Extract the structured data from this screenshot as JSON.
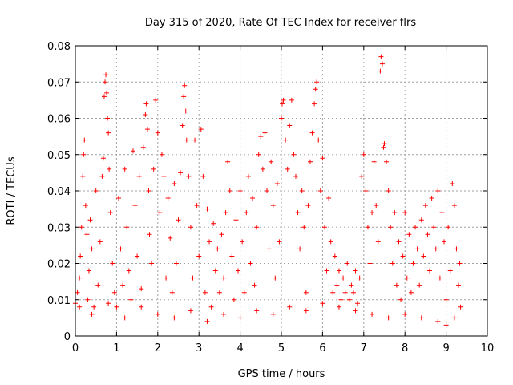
{
  "chart_data": {
    "type": "scatter",
    "title": "Day 315 of 2020, Rate Of TEC Index for receiver flrs",
    "xlabel": "GPS time / hours",
    "ylabel": "ROTI / TECUs",
    "xlim": [
      0,
      10
    ],
    "ylim": [
      0,
      0.08
    ],
    "x_ticks": [
      "0",
      "1",
      "2",
      "3",
      "4",
      "5",
      "6",
      "7",
      "8",
      "9",
      "10"
    ],
    "y_ticks": [
      "0",
      "0.01",
      "0.02",
      "0.03",
      "0.04",
      "0.05",
      "0.06",
      "0.07",
      "0.08"
    ],
    "grid": true,
    "marker": "plus",
    "color": "#ff0000",
    "series": [
      {
        "name": "ROTI",
        "points": [
          [
            0.0,
            0.009
          ],
          [
            0.05,
            0.012
          ],
          [
            0.1,
            0.016
          ],
          [
            0.12,
            0.022
          ],
          [
            0.15,
            0.03
          ],
          [
            0.18,
            0.044
          ],
          [
            0.2,
            0.05
          ],
          [
            0.22,
            0.054
          ],
          [
            0.25,
            0.036
          ],
          [
            0.28,
            0.028
          ],
          [
            0.3,
            0.01
          ],
          [
            0.33,
            0.018
          ],
          [
            0.36,
            0.032
          ],
          [
            0.4,
            0.024
          ],
          [
            0.45,
            0.008
          ],
          [
            0.5,
            0.04
          ],
          [
            0.55,
            0.014
          ],
          [
            0.6,
            0.026
          ],
          [
            0.65,
            0.044
          ],
          [
            0.68,
            0.049
          ],
          [
            0.7,
            0.066
          ],
          [
            0.72,
            0.07
          ],
          [
            0.74,
            0.072
          ],
          [
            0.76,
            0.067
          ],
          [
            0.78,
            0.06
          ],
          [
            0.8,
            0.056
          ],
          [
            0.82,
            0.046
          ],
          [
            0.85,
            0.034
          ],
          [
            0.9,
            0.02
          ],
          [
            0.95,
            0.012
          ],
          [
            1.0,
            0.008
          ],
          [
            1.05,
            0.038
          ],
          [
            1.1,
            0.024
          ],
          [
            1.15,
            0.014
          ],
          [
            1.2,
            0.046
          ],
          [
            1.25,
            0.03
          ],
          [
            1.3,
            0.018
          ],
          [
            1.35,
            0.01
          ],
          [
            1.4,
            0.051
          ],
          [
            1.45,
            0.036
          ],
          [
            1.5,
            0.022
          ],
          [
            1.55,
            0.044
          ],
          [
            1.6,
            0.013
          ],
          [
            1.65,
            0.052
          ],
          [
            1.7,
            0.061
          ],
          [
            1.72,
            0.064
          ],
          [
            1.75,
            0.057
          ],
          [
            1.78,
            0.04
          ],
          [
            1.8,
            0.028
          ],
          [
            1.85,
            0.02
          ],
          [
            1.9,
            0.046
          ],
          [
            1.95,
            0.065
          ],
          [
            2.0,
            0.056
          ],
          [
            2.05,
            0.034
          ],
          [
            2.1,
            0.05
          ],
          [
            2.15,
            0.044
          ],
          [
            2.2,
            0.016
          ],
          [
            2.25,
            0.038
          ],
          [
            2.3,
            0.027
          ],
          [
            2.35,
            0.012
          ],
          [
            2.4,
            0.042
          ],
          [
            2.45,
            0.02
          ],
          [
            2.5,
            0.032
          ],
          [
            2.55,
            0.045
          ],
          [
            2.6,
            0.058
          ],
          [
            2.63,
            0.066
          ],
          [
            2.65,
            0.069
          ],
          [
            2.68,
            0.062
          ],
          [
            2.7,
            0.054
          ],
          [
            2.75,
            0.044
          ],
          [
            2.8,
            0.03
          ],
          [
            2.85,
            0.016
          ],
          [
            2.9,
            0.054
          ],
          [
            2.95,
            0.036
          ],
          [
            3.0,
            0.022
          ],
          [
            3.05,
            0.057
          ],
          [
            3.1,
            0.044
          ],
          [
            3.15,
            0.012
          ],
          [
            3.2,
            0.035
          ],
          [
            3.25,
            0.026
          ],
          [
            3.3,
            0.008
          ],
          [
            3.35,
            0.031
          ],
          [
            3.4,
            0.018
          ],
          [
            3.45,
            0.024
          ],
          [
            3.5,
            0.012
          ],
          [
            3.55,
            0.028
          ],
          [
            3.6,
            0.016
          ],
          [
            3.65,
            0.034
          ],
          [
            3.7,
            0.048
          ],
          [
            3.75,
            0.04
          ],
          [
            3.8,
            0.022
          ],
          [
            3.85,
            0.01
          ],
          [
            3.9,
            0.032
          ],
          [
            3.95,
            0.018
          ],
          [
            4.0,
            0.04
          ],
          [
            4.05,
            0.026
          ],
          [
            4.1,
            0.012
          ],
          [
            4.15,
            0.034
          ],
          [
            4.2,
            0.044
          ],
          [
            4.25,
            0.02
          ],
          [
            4.3,
            0.038
          ],
          [
            4.35,
            0.014
          ],
          [
            4.4,
            0.03
          ],
          [
            4.45,
            0.05
          ],
          [
            4.5,
            0.055
          ],
          [
            4.55,
            0.046
          ],
          [
            4.6,
            0.056
          ],
          [
            4.65,
            0.04
          ],
          [
            4.7,
            0.024
          ],
          [
            4.75,
            0.048
          ],
          [
            4.8,
            0.036
          ],
          [
            4.85,
            0.016
          ],
          [
            4.9,
            0.042
          ],
          [
            4.95,
            0.026
          ],
          [
            5.0,
            0.06
          ],
          [
            5.02,
            0.064
          ],
          [
            5.05,
            0.065
          ],
          [
            5.1,
            0.054
          ],
          [
            5.15,
            0.046
          ],
          [
            5.2,
            0.058
          ],
          [
            5.25,
            0.065
          ],
          [
            5.3,
            0.05
          ],
          [
            5.35,
            0.044
          ],
          [
            5.4,
            0.034
          ],
          [
            5.45,
            0.024
          ],
          [
            5.5,
            0.04
          ],
          [
            5.55,
            0.03
          ],
          [
            5.6,
            0.012
          ],
          [
            5.65,
            0.036
          ],
          [
            5.7,
            0.048
          ],
          [
            5.75,
            0.056
          ],
          [
            5.8,
            0.064
          ],
          [
            5.83,
            0.068
          ],
          [
            5.86,
            0.07
          ],
          [
            5.9,
            0.054
          ],
          [
            5.95,
            0.04
          ],
          [
            6.0,
            0.049
          ],
          [
            6.05,
            0.03
          ],
          [
            6.1,
            0.018
          ],
          [
            6.15,
            0.038
          ],
          [
            6.2,
            0.026
          ],
          [
            6.25,
            0.012
          ],
          [
            6.3,
            0.022
          ],
          [
            6.35,
            0.014
          ],
          [
            6.4,
            0.018
          ],
          [
            6.45,
            0.01
          ],
          [
            6.5,
            0.016
          ],
          [
            6.55,
            0.012
          ],
          [
            6.6,
            0.02
          ],
          [
            6.65,
            0.01
          ],
          [
            6.7,
            0.014
          ],
          [
            6.75,
            0.012
          ],
          [
            6.8,
            0.018
          ],
          [
            6.85,
            0.009
          ],
          [
            6.9,
            0.016
          ],
          [
            6.95,
            0.044
          ],
          [
            7.0,
            0.05
          ],
          [
            7.05,
            0.04
          ],
          [
            7.1,
            0.03
          ],
          [
            7.15,
            0.02
          ],
          [
            7.2,
            0.034
          ],
          [
            7.25,
            0.048
          ],
          [
            7.3,
            0.036
          ],
          [
            7.35,
            0.026
          ],
          [
            7.4,
            0.073
          ],
          [
            7.42,
            0.077
          ],
          [
            7.45,
            0.075
          ],
          [
            7.48,
            0.052
          ],
          [
            7.5,
            0.053
          ],
          [
            7.55,
            0.048
          ],
          [
            7.6,
            0.04
          ],
          [
            7.65,
            0.03
          ],
          [
            7.7,
            0.02
          ],
          [
            7.75,
            0.034
          ],
          [
            7.8,
            0.014
          ],
          [
            7.85,
            0.026
          ],
          [
            7.9,
            0.01
          ],
          [
            7.95,
            0.022
          ],
          [
            8.0,
            0.034
          ],
          [
            8.05,
            0.016
          ],
          [
            8.1,
            0.028
          ],
          [
            8.15,
            0.012
          ],
          [
            8.2,
            0.02
          ],
          [
            8.25,
            0.03
          ],
          [
            8.3,
            0.024
          ],
          [
            8.35,
            0.014
          ],
          [
            8.4,
            0.032
          ],
          [
            8.45,
            0.022
          ],
          [
            8.5,
            0.036
          ],
          [
            8.55,
            0.028
          ],
          [
            8.6,
            0.018
          ],
          [
            8.65,
            0.038
          ],
          [
            8.7,
            0.03
          ],
          [
            8.75,
            0.024
          ],
          [
            8.8,
            0.04
          ],
          [
            8.85,
            0.016
          ],
          [
            8.9,
            0.034
          ],
          [
            8.95,
            0.026
          ],
          [
            9.0,
            0.01
          ],
          [
            9.05,
            0.03
          ],
          [
            9.1,
            0.018
          ],
          [
            9.15,
            0.042
          ],
          [
            9.2,
            0.036
          ],
          [
            9.25,
            0.024
          ],
          [
            9.3,
            0.014
          ],
          [
            9.33,
            0.02
          ],
          [
            9.35,
            0.008
          ],
          [
            0.1,
            0.008
          ],
          [
            0.4,
            0.006
          ],
          [
            0.8,
            0.009
          ],
          [
            1.2,
            0.005
          ],
          [
            1.6,
            0.008
          ],
          [
            2.0,
            0.006
          ],
          [
            2.4,
            0.005
          ],
          [
            2.8,
            0.007
          ],
          [
            3.2,
            0.004
          ],
          [
            3.6,
            0.006
          ],
          [
            4.0,
            0.005
          ],
          [
            4.4,
            0.007
          ],
          [
            4.8,
            0.006
          ],
          [
            5.2,
            0.008
          ],
          [
            5.6,
            0.007
          ],
          [
            6.0,
            0.009
          ],
          [
            6.4,
            0.008
          ],
          [
            6.8,
            0.007
          ],
          [
            7.2,
            0.006
          ],
          [
            7.6,
            0.005
          ],
          [
            8.0,
            0.006
          ],
          [
            8.4,
            0.005
          ],
          [
            8.8,
            0.004
          ],
          [
            9.0,
            0.003
          ],
          [
            9.2,
            0.005
          ]
        ]
      }
    ]
  }
}
